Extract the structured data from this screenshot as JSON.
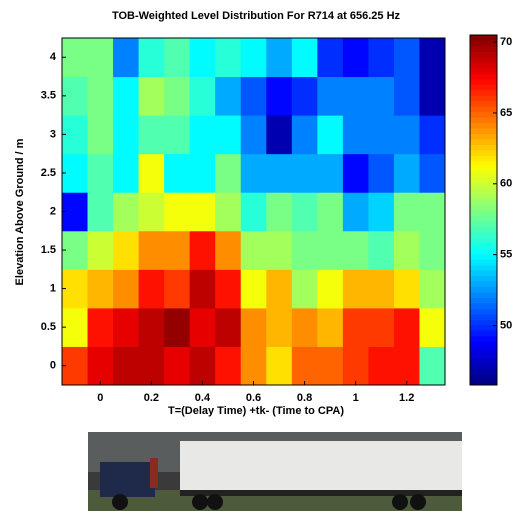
{
  "chart_data": {
    "type": "heatmap",
    "title": "TOB-Weighted Level Distribution For R714 at 656.25 Hz",
    "xlabel": "T=(Delay Time) +tk- (Time to CPA)",
    "ylabel": "Elevation Above Ground / m",
    "colormap": "jet",
    "x": [
      -0.1,
      0,
      0.1,
      0.2,
      0.3,
      0.4,
      0.5,
      0.6,
      0.7,
      0.8,
      0.9,
      1,
      1.1,
      1.2,
      1.3
    ],
    "y": [
      0,
      0.5,
      1,
      1.5,
      2,
      2.5,
      3,
      3.5,
      4
    ],
    "z": [
      [
        66,
        68,
        69,
        69,
        68,
        69,
        67,
        64,
        62,
        65,
        65,
        66,
        67,
        67,
        57
      ],
      [
        61,
        67,
        68,
        69,
        70,
        68,
        69,
        64,
        63,
        64,
        63,
        66,
        66,
        67,
        61
      ],
      [
        62,
        63,
        64,
        67,
        66,
        69,
        67,
        61,
        63,
        59,
        61,
        63,
        63,
        62,
        59
      ],
      [
        58,
        60,
        62,
        64,
        64,
        67,
        64,
        59,
        59,
        58,
        58,
        58,
        57,
        59,
        58
      ],
      [
        49,
        57,
        59,
        60,
        61,
        61,
        59,
        56,
        58,
        57,
        58,
        53,
        54,
        58,
        58
      ],
      [
        55,
        57,
        55,
        61,
        55,
        55,
        58,
        53,
        53,
        53,
        53,
        49,
        51,
        53,
        51
      ],
      [
        56,
        58,
        55,
        57,
        57,
        55,
        55,
        52,
        47,
        52,
        55,
        52,
        52,
        52,
        50
      ],
      [
        57,
        58,
        55,
        59,
        58,
        56,
        53,
        51,
        49,
        50,
        52,
        52,
        52,
        51,
        47
      ],
      [
        58,
        58,
        52,
        56,
        57,
        55,
        56,
        55,
        53,
        55,
        50,
        49,
        50,
        51,
        47
      ]
    ],
    "xlim": [
      -0.15,
      1.35
    ],
    "ylim": [
      -0.25,
      4.25
    ],
    "xticks": [
      0,
      0.2,
      0.4,
      0.6,
      0.8,
      1,
      1.2
    ],
    "yticks": [
      0,
      0.5,
      1,
      1.5,
      2,
      2.5,
      3,
      3.5,
      4
    ],
    "clim": [
      45.8,
      70.5
    ],
    "cticks": [
      50,
      55,
      60,
      65,
      70
    ]
  }
}
